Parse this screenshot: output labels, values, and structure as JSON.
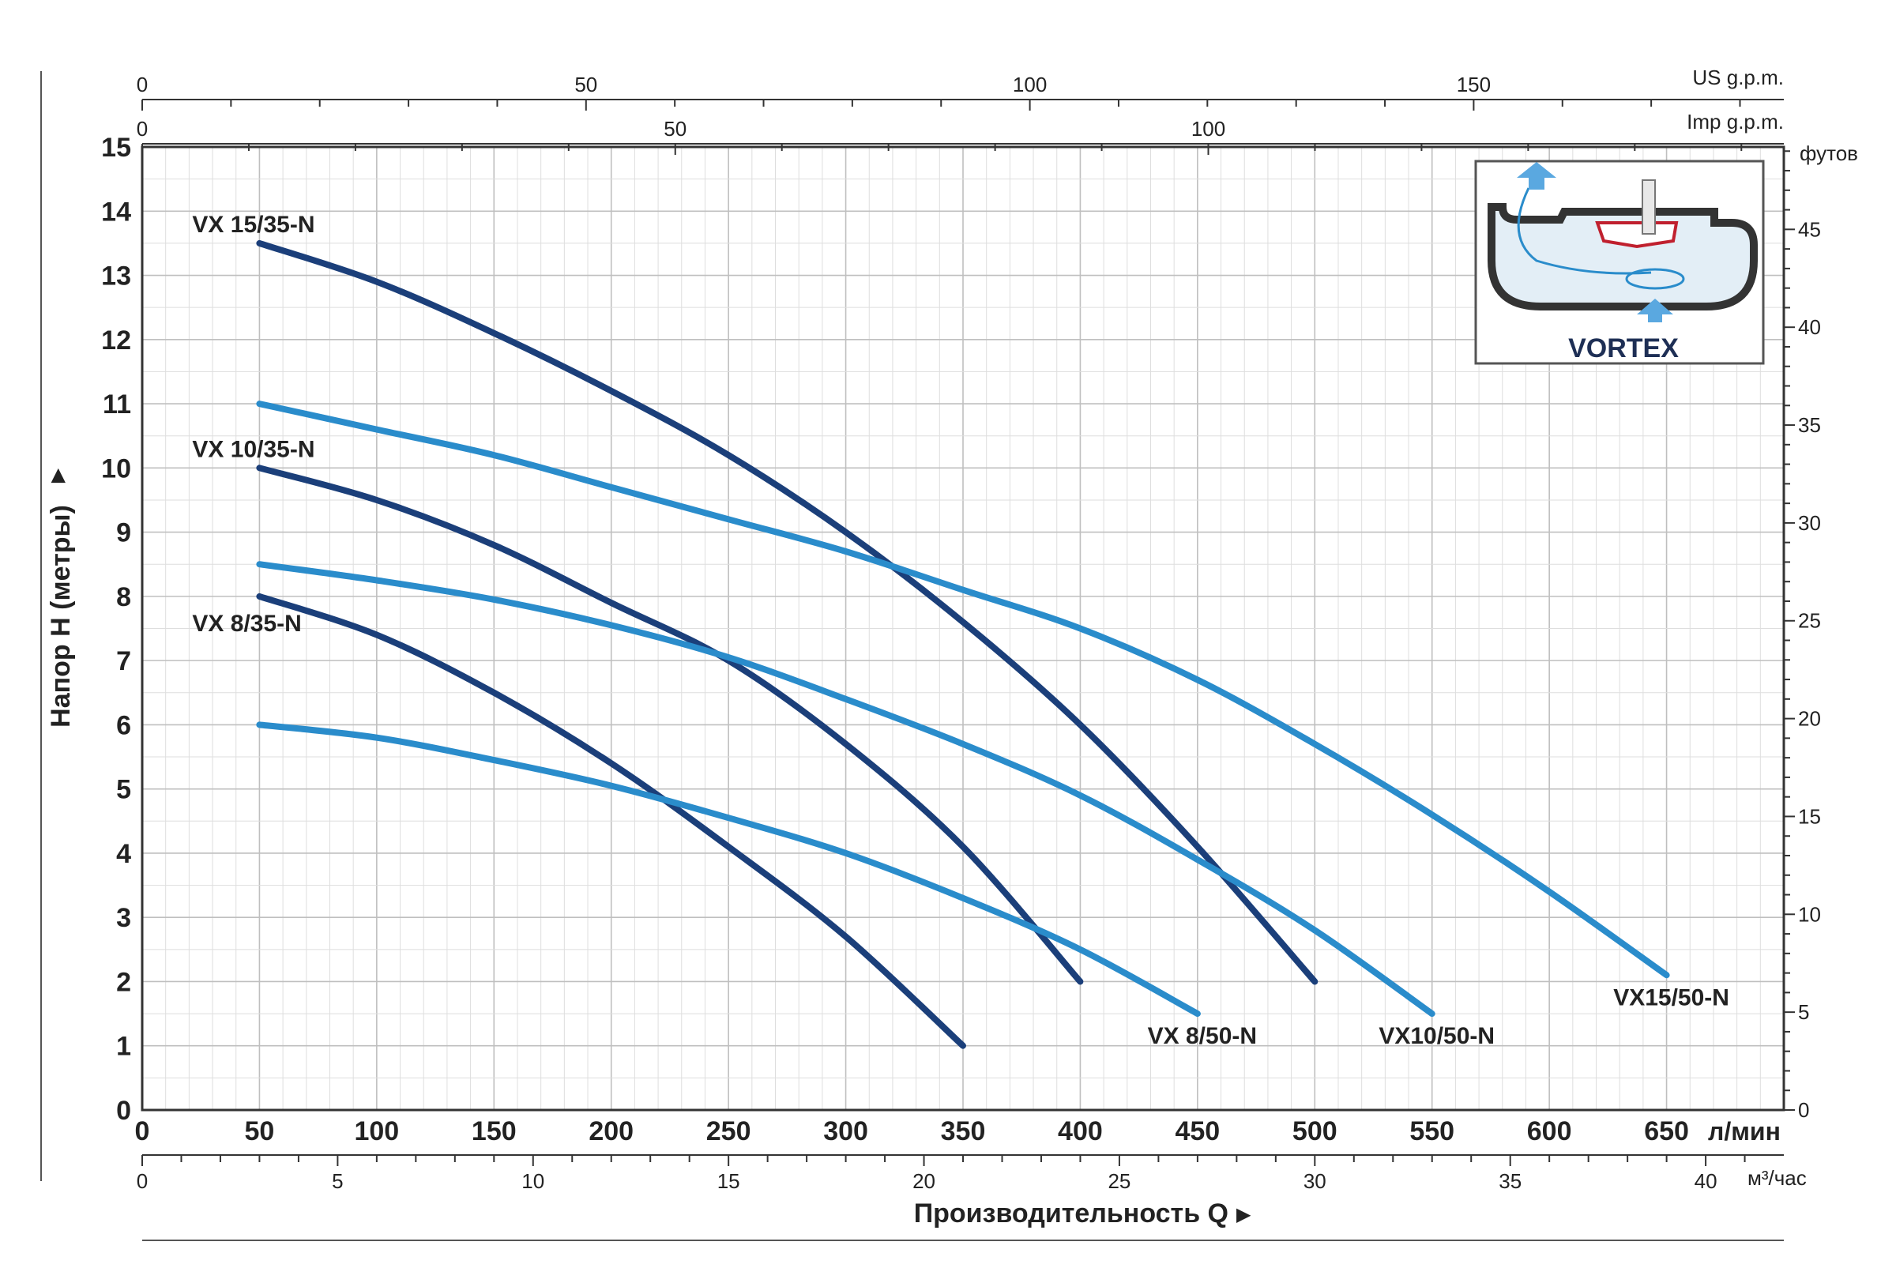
{
  "colors": {
    "dark": "#1b3f7a",
    "light": "#2a8ccb",
    "grid_major": "#bfbfbf",
    "grid_minor": "#dedede",
    "axis": "#333333",
    "text": "#222222"
  },
  "chart_data": {
    "type": "line",
    "xlabel": "Производительность Q",
    "ylabel": "Напор H (метры)",
    "x_unit": "л/мин",
    "x_range": [
      0,
      700
    ],
    "y_range": [
      0,
      15
    ],
    "grid": true,
    "x_ticks": [
      "0",
      "50",
      "100",
      "150",
      "200",
      "250",
      "300",
      "350",
      "400",
      "450",
      "500",
      "550",
      "600",
      "650"
    ],
    "y_ticks": [
      "0",
      "1",
      "2",
      "3",
      "4",
      "5",
      "6",
      "7",
      "8",
      "9",
      "10",
      "11",
      "12",
      "13",
      "14",
      "15"
    ],
    "secondary_axes": {
      "us_gpm": {
        "unit": "US g.p.m.",
        "ticks": [
          "0",
          "50",
          "100",
          "150"
        ],
        "values": [
          0,
          50,
          100,
          150
        ],
        "factor_lpm": 3.785
      },
      "imp_gpm": {
        "unit": "Imp g.p.m.",
        "ticks": [
          "0",
          "50",
          "100"
        ],
        "values": [
          0,
          50,
          100
        ],
        "factor_lpm": 4.546
      },
      "m3h": {
        "unit": "м³/час",
        "ticks": [
          "0",
          "5",
          "10",
          "15",
          "20",
          "25",
          "30",
          "35",
          "40"
        ],
        "values": [
          0,
          5,
          10,
          15,
          20,
          25,
          30,
          35,
          40
        ],
        "factor_lpm": 16.667
      },
      "feet": {
        "unit": "футов",
        "ticks": [
          "0",
          "5",
          "10",
          "15",
          "20",
          "25",
          "30",
          "35",
          "40",
          "45"
        ],
        "values": [
          0,
          5,
          10,
          15,
          20,
          25,
          30,
          35,
          40,
          45
        ],
        "factor_m": 0.3048
      }
    },
    "series": [
      {
        "name": "VX 15/35-N",
        "color": "dark",
        "x": [
          50,
          100,
          150,
          200,
          250,
          300,
          350,
          400,
          450,
          500
        ],
        "y": [
          13.5,
          12.9,
          12.1,
          11.2,
          10.2,
          9.0,
          7.6,
          6.0,
          4.1,
          2.0
        ]
      },
      {
        "name": "VX 10/35-N",
        "color": "dark",
        "x": [
          50,
          100,
          150,
          200,
          250,
          300,
          350,
          400
        ],
        "y": [
          10.0,
          9.5,
          8.8,
          7.9,
          7.0,
          5.7,
          4.1,
          2.0
        ]
      },
      {
        "name": "VX 8/35-N",
        "color": "dark",
        "x": [
          50,
          100,
          150,
          200,
          250,
          300,
          350
        ],
        "y": [
          8.0,
          7.4,
          6.5,
          5.4,
          4.1,
          2.7,
          1.0
        ]
      },
      {
        "name": "VX15/50-N",
        "color": "light",
        "x": [
          50,
          100,
          150,
          200,
          250,
          300,
          350,
          400,
          450,
          500,
          550,
          600,
          650
        ],
        "y": [
          11.0,
          10.6,
          10.2,
          9.7,
          9.2,
          8.7,
          8.1,
          7.5,
          6.7,
          5.7,
          4.6,
          3.4,
          2.1
        ]
      },
      {
        "name": "VX10/50-N",
        "color": "light",
        "x": [
          50,
          100,
          150,
          200,
          250,
          300,
          350,
          400,
          450,
          500,
          550
        ],
        "y": [
          8.5,
          8.25,
          7.95,
          7.55,
          7.05,
          6.4,
          5.7,
          4.9,
          3.9,
          2.8,
          1.5
        ]
      },
      {
        "name": "VX 8/50-N",
        "color": "light",
        "x": [
          50,
          100,
          150,
          200,
          250,
          300,
          350,
          400,
          450
        ],
        "y": [
          6.0,
          5.8,
          5.45,
          5.05,
          4.55,
          4.0,
          3.3,
          2.5,
          1.5
        ]
      }
    ]
  },
  "inset": {
    "label": "VORTEX"
  }
}
